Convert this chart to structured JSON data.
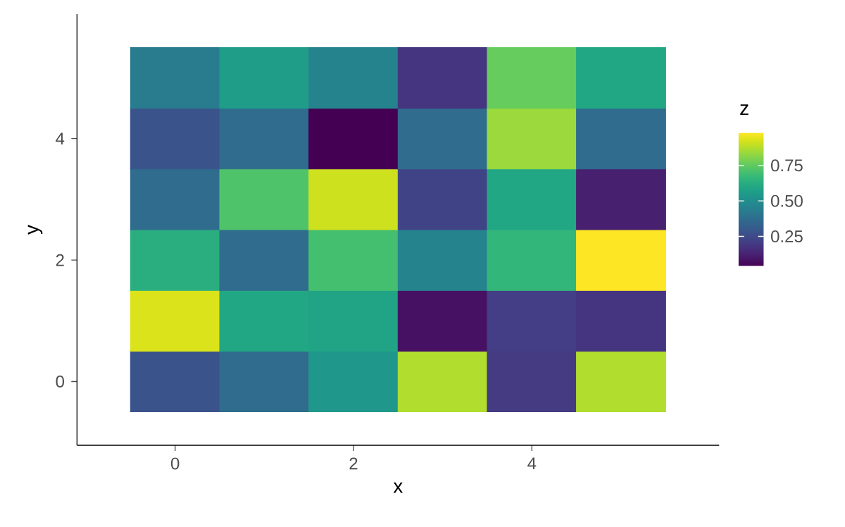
{
  "chart_data": {
    "type": "heatmap",
    "xlabel": "x",
    "ylabel": "y",
    "clabel": "z",
    "categories": [
      "0",
      null,
      "2",
      null,
      "4",
      null
    ],
    "y_categories": [
      null,
      "4",
      null,
      "2",
      null,
      "0"
    ],
    "cells": [
      [
        0.43,
        0.56,
        0.46,
        0.18,
        0.76,
        0.6
      ],
      [
        0.28,
        0.37,
        0.04,
        0.37,
        0.84,
        0.37
      ],
      [
        0.37,
        0.72,
        0.91,
        0.23,
        0.6,
        0.12
      ],
      [
        0.63,
        0.37,
        0.7,
        0.46,
        0.66,
        0.98
      ],
      [
        0.93,
        0.6,
        0.59,
        0.08,
        0.21,
        0.18
      ],
      [
        0.28,
        0.37,
        0.54,
        0.87,
        0.2,
        0.87
      ]
    ],
    "clim": [
      0.04,
      0.98
    ],
    "cticks": [
      0.25,
      {
        "value": 0.5,
        "label": "0.50"
      },
      0.75
    ],
    "grid": false
  }
}
